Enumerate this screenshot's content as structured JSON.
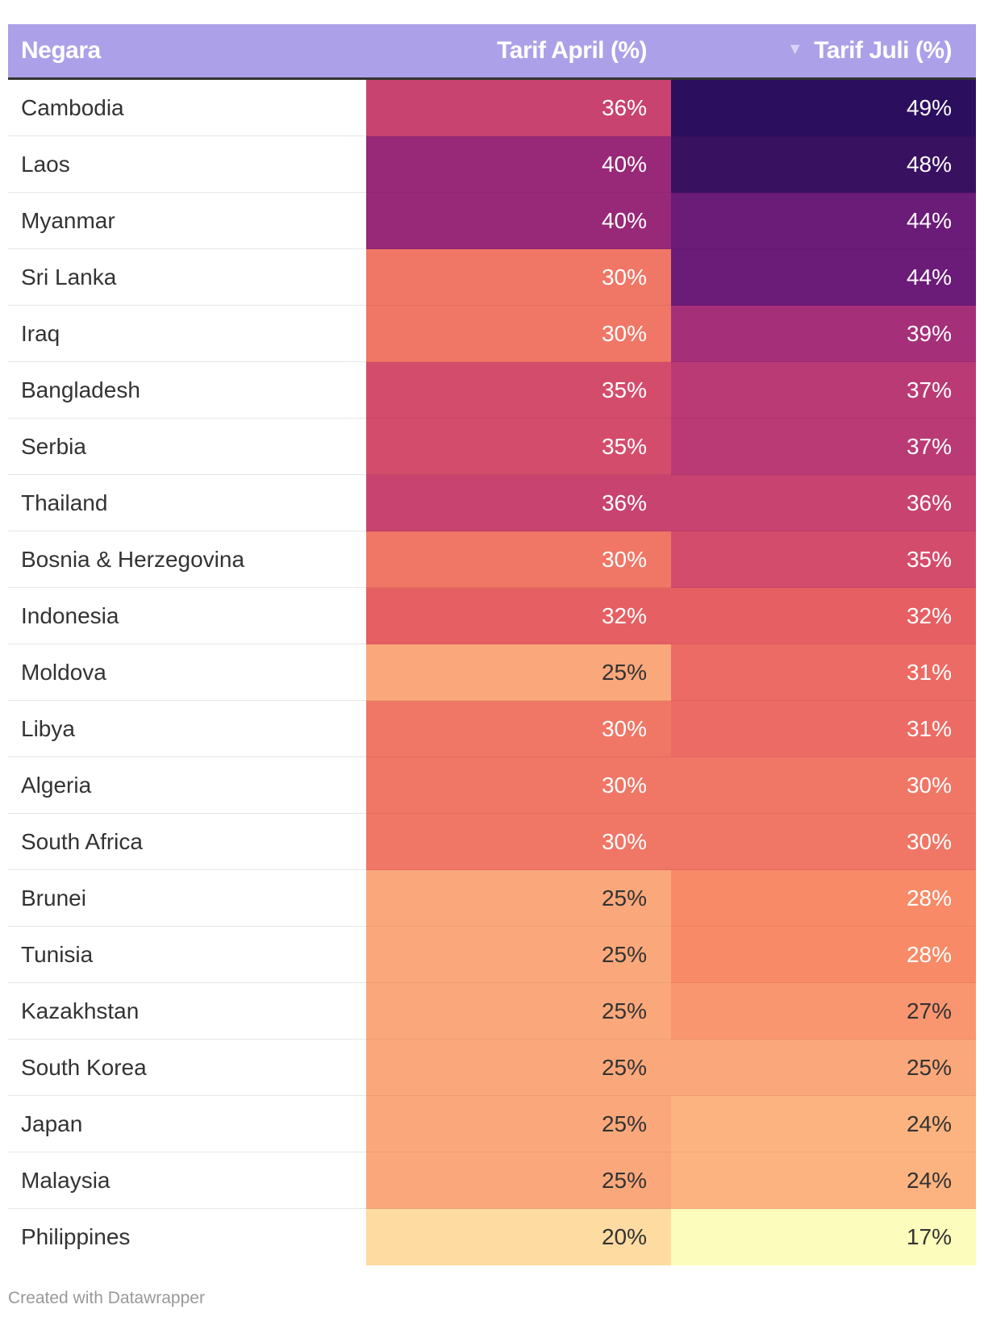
{
  "chart_data": {
    "type": "table",
    "columns": [
      {
        "key": "country",
        "label": "Negara"
      },
      {
        "key": "april",
        "label": "Tarif April (%)"
      },
      {
        "key": "july",
        "label": "Tarif Juli (%)",
        "sorted": "descending"
      }
    ],
    "rows": [
      {
        "country": "Cambodia",
        "april": 36,
        "july": 49
      },
      {
        "country": "Laos",
        "april": 40,
        "july": 48
      },
      {
        "country": "Myanmar",
        "april": 40,
        "july": 44
      },
      {
        "country": "Sri Lanka",
        "april": 30,
        "july": 44
      },
      {
        "country": "Iraq",
        "april": 30,
        "july": 39
      },
      {
        "country": "Bangladesh",
        "april": 35,
        "july": 37
      },
      {
        "country": "Serbia",
        "april": 35,
        "july": 37
      },
      {
        "country": "Thailand",
        "april": 36,
        "july": 36
      },
      {
        "country": "Bosnia & Herzegovina",
        "april": 30,
        "july": 35
      },
      {
        "country": "Indonesia",
        "april": 32,
        "july": 32
      },
      {
        "country": "Moldova",
        "april": 25,
        "july": 31
      },
      {
        "country": "Libya",
        "april": 30,
        "july": 31
      },
      {
        "country": "Algeria",
        "april": 30,
        "july": 30
      },
      {
        "country": "South Africa",
        "april": 30,
        "july": 30
      },
      {
        "country": "Brunei",
        "april": 25,
        "july": 28
      },
      {
        "country": "Tunisia",
        "april": 25,
        "july": 28
      },
      {
        "country": "Kazakhstan",
        "april": 25,
        "july": 27
      },
      {
        "country": "South Korea",
        "april": 25,
        "july": 25
      },
      {
        "country": "Japan",
        "april": 25,
        "july": 24
      },
      {
        "country": "Malaysia",
        "april": 25,
        "july": 24
      },
      {
        "country": "Philippines",
        "april": 20,
        "july": 17
      }
    ],
    "value_suffix": "%",
    "color_scale": {
      "stops": [
        {
          "value": 17,
          "color": "#fcfcbc"
        },
        {
          "value": 20,
          "color": "#fedba1"
        },
        {
          "value": 24,
          "color": "#fdb37f"
        },
        {
          "value": 25,
          "color": "#faa87b"
        },
        {
          "value": 27,
          "color": "#f99670"
        },
        {
          "value": 28,
          "color": "#f88a67"
        },
        {
          "value": 30,
          "color": "#f07666"
        },
        {
          "value": 31,
          "color": "#ec6b64"
        },
        {
          "value": 32,
          "color": "#e65f62"
        },
        {
          "value": 35,
          "color": "#d44c6b"
        },
        {
          "value": 36,
          "color": "#c8436f"
        },
        {
          "value": 37,
          "color": "#ba3a75"
        },
        {
          "value": 39,
          "color": "#a52f79"
        },
        {
          "value": 40,
          "color": "#982878"
        },
        {
          "value": 44,
          "color": "#6b1b78"
        },
        {
          "value": 48,
          "color": "#381160"
        },
        {
          "value": 49,
          "color": "#2b0f5e"
        }
      ],
      "light_text_color": "#ffffff",
      "dark_text_color": "#333333",
      "dark_text_below": 28
    }
  },
  "header": {
    "background": "#aca0e8",
    "sort_icon": "triangle-down-icon"
  },
  "footer": {
    "credit": "Created with Datawrapper"
  }
}
